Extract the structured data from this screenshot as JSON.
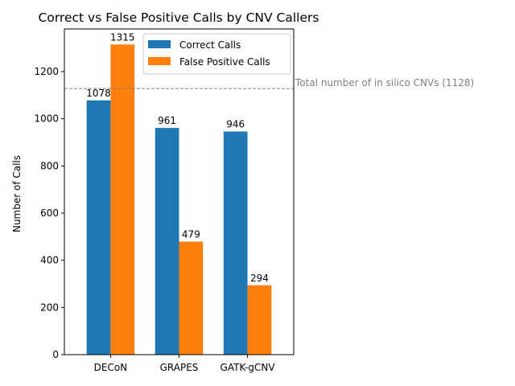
{
  "chart_data": {
    "type": "bar",
    "title": "Correct vs False Positive Calls by CNV Callers",
    "xlabel": "",
    "ylabel": "Number of Calls",
    "categories": [
      "DECoN",
      "GRAPES",
      "GATK-gCNV"
    ],
    "series": [
      {
        "name": "Correct Calls",
        "values": [
          1078,
          961,
          946
        ],
        "color": "#1f77b4",
        "value_labels": [
          "1078",
          "961",
          "946"
        ]
      },
      {
        "name": "False Positive Calls",
        "values": [
          1315,
          479,
          294
        ],
        "color": "#ff7f0e",
        "value_labels": [
          "1315",
          "479",
          "294"
        ]
      }
    ],
    "ylim": [
      0,
      1380.75
    ],
    "yticks": [
      0,
      200,
      400,
      600,
      800,
      1000,
      1200
    ],
    "grid": false,
    "legend_position": "top-right",
    "reference_line": {
      "value": 1128,
      "label": "Total number of in silico CNVs (1128)",
      "color": "#808080",
      "style": "dashed"
    }
  }
}
